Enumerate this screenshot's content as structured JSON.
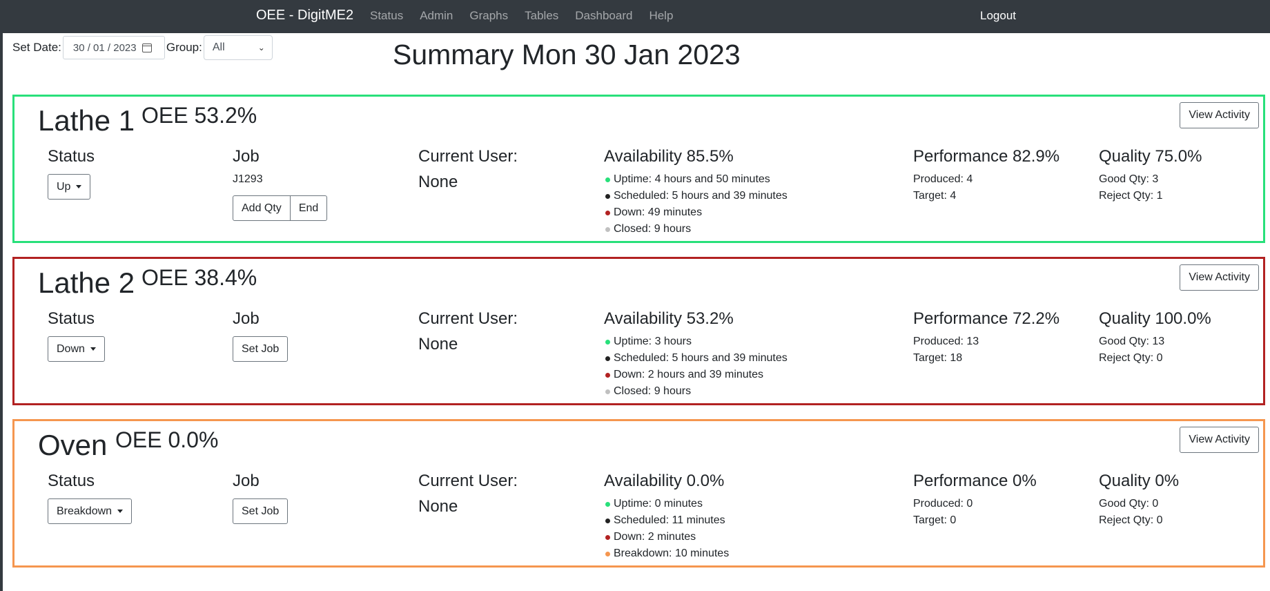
{
  "nav": {
    "brand": "OEE - DigitME2",
    "links": [
      "Status",
      "Admin",
      "Graphs",
      "Tables",
      "Dashboard",
      "Help"
    ],
    "logout": "Logout"
  },
  "filters": {
    "date_label": "Set Date:",
    "date_value": "30 / 01 / 2023",
    "group_label": "Group:",
    "group_value": "All"
  },
  "page_title": "Summary Mon 30 Jan 2023",
  "colors": {
    "up": "#28e07a",
    "down": "#b22222",
    "breakdown": "#f5964f",
    "scheduled": "#222222",
    "closed": "#c0c0c0"
  },
  "machines": [
    {
      "name": "Lathe 1",
      "oee": "OEE 53.2%",
      "view_label": "View Activity",
      "status_heading": "Status",
      "status": "Up",
      "job_heading": "Job",
      "job": "J1293",
      "job_buttons": [
        "Add Qty",
        "End"
      ],
      "user_heading": "Current User:",
      "user": "None",
      "availability": "Availability 85.5%",
      "availability_items": [
        {
          "text": "Uptime: 4 hours and 50 minutes",
          "dot": "up"
        },
        {
          "text": "Scheduled: 5 hours and 39 minutes",
          "dot": "scheduled"
        },
        {
          "text": "Down: 49 minutes",
          "dot": "down"
        },
        {
          "text": "Closed: 9 hours",
          "dot": "closed"
        }
      ],
      "performance": "Performance 82.9%",
      "produced": "Produced: 4",
      "target": "Target: 4",
      "quality": "Quality 75.0%",
      "good_qty": "Good Qty: 3",
      "reject_qty": "Reject Qty: 1"
    },
    {
      "name": "Lathe 2",
      "oee": "OEE 38.4%",
      "view_label": "View Activity",
      "status_heading": "Status",
      "status": "Down",
      "job_heading": "Job",
      "set_job": "Set Job",
      "user_heading": "Current User:",
      "user": "None",
      "availability": "Availability 53.2%",
      "availability_items": [
        {
          "text": "Uptime: 3 hours",
          "dot": "up"
        },
        {
          "text": "Scheduled: 5 hours and 39 minutes",
          "dot": "scheduled"
        },
        {
          "text": "Down: 2 hours and 39 minutes",
          "dot": "down"
        },
        {
          "text": "Closed: 9 hours",
          "dot": "closed"
        }
      ],
      "performance": "Performance 72.2%",
      "produced": "Produced: 13",
      "target": "Target: 18",
      "quality": "Quality 100.0%",
      "good_qty": "Good Qty: 13",
      "reject_qty": "Reject Qty: 0"
    },
    {
      "name": "Oven",
      "oee": "OEE 0.0%",
      "view_label": "View Activity",
      "status_heading": "Status",
      "status": "Breakdown",
      "job_heading": "Job",
      "set_job": "Set Job",
      "user_heading": "Current User:",
      "user": "None",
      "availability": "Availability 0.0%",
      "availability_items": [
        {
          "text": "Uptime: 0 minutes",
          "dot": "up"
        },
        {
          "text": "Scheduled: 11 minutes",
          "dot": "scheduled"
        },
        {
          "text": "Down: 2 minutes",
          "dot": "down"
        },
        {
          "text": "Breakdown: 10 minutes",
          "dot": "breakdown"
        }
      ],
      "performance": "Performance 0%",
      "produced": "Produced: 0",
      "target": "Target: 0",
      "quality": "Quality 0%",
      "good_qty": "Good Qty: 0",
      "reject_qty": "Reject Qty: 0"
    }
  ]
}
